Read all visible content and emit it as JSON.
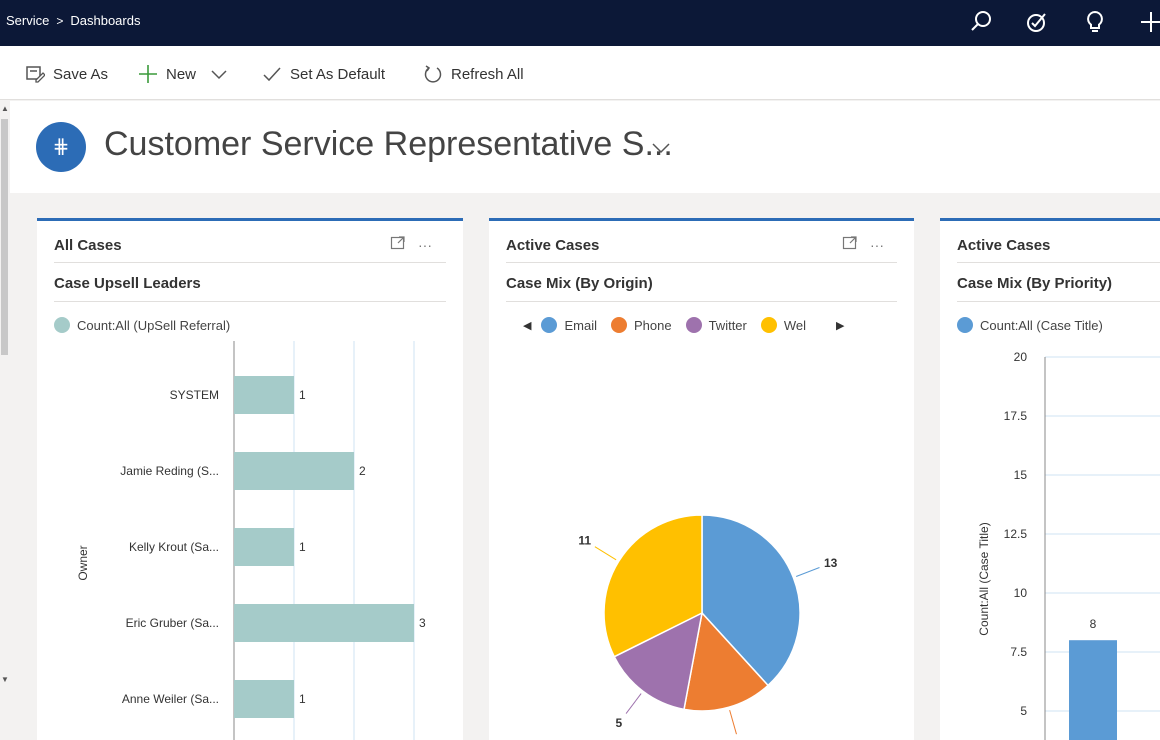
{
  "breadcrumb": {
    "root": "Service",
    "separator": ">",
    "current": "Dashboards"
  },
  "command_bar": {
    "save_as": "Save As",
    "new": "New",
    "set_default": "Set As Default",
    "refresh_all": "Refresh All"
  },
  "dashboard": {
    "title": "Customer Service Representative S..."
  },
  "cards": [
    {
      "entity": "All Cases",
      "chart_title": "Case Upsell Leaders",
      "legend": "Count:All (UpSell Referral)"
    },
    {
      "entity": "Active Cases",
      "chart_title": "Case Mix (By Origin)",
      "legend": [
        "Email",
        "Phone",
        "Twitter",
        "Wel"
      ]
    },
    {
      "entity": "Active Cases",
      "chart_title": "Case Mix (By Priority)",
      "legend": "Count:All (Case Title)"
    }
  ],
  "colors": {
    "accent": "#2c6cb6",
    "nav": "#0c1837",
    "teal": "#a5cbc9",
    "email": "#5b9bd5",
    "phone": "#ed7d31",
    "twitter": "#9e72ad",
    "web": "#ffc000"
  },
  "chart_data": [
    {
      "type": "bar",
      "orientation": "horizontal",
      "title": "Case Upsell Leaders",
      "ylabel": "Owner",
      "categories": [
        "SYSTEM",
        "Jamie Reding (S...",
        "Kelly Krout (Sa...",
        "Eric Gruber (Sa...",
        "Anne Weiler (Sa..."
      ],
      "series": [
        {
          "name": "Count:All (UpSell Referral)",
          "values": [
            1,
            2,
            1,
            3,
            1
          ]
        }
      ],
      "xlim": [
        0,
        3
      ]
    },
    {
      "type": "pie",
      "title": "Case Mix (By Origin)",
      "categories": [
        "Email",
        "Phone",
        "Twitter",
        "Wel"
      ],
      "values": [
        13,
        5,
        5,
        11
      ]
    },
    {
      "type": "bar",
      "title": "Case Mix (By Priority)",
      "ylabel": "Count:All (Case Title)",
      "series": [
        {
          "name": "Count:All (Case Title)",
          "values": [
            8
          ]
        }
      ],
      "ylim": [
        0,
        20
      ],
      "yticks": [
        5,
        7.5,
        10,
        12.5,
        15,
        17.5,
        20
      ]
    }
  ]
}
